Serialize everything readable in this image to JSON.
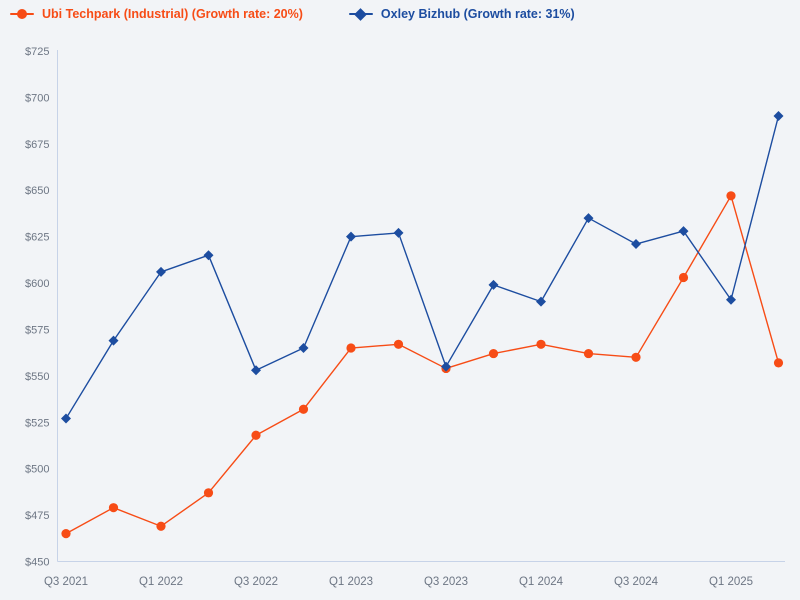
{
  "colors": {
    "background": "#f2f4f7",
    "axis": "#c7d3e8",
    "tick_label": "#6d7684",
    "series_orange": "#f74c16",
    "series_blue": "#1d4da0"
  },
  "legend": {
    "items": [
      {
        "label": "Ubi Techpark (Industrial) (Growth rate: 20%)",
        "color": "#f74c16",
        "marker": "circle"
      },
      {
        "label": "Oxley Bizhub (Growth rate: 31%)",
        "color": "#1d4da0",
        "marker": "diamond"
      }
    ]
  },
  "chart_data": {
    "type": "line",
    "title": "",
    "xlabel": "",
    "ylabel": "",
    "grid": false,
    "legend_position": "top-left",
    "currency_prefix": "$",
    "ylim": [
      450,
      725
    ],
    "y_tick_step": 25,
    "y_tick_labels": [
      "$450",
      "$475",
      "$500",
      "$525",
      "$550",
      "$575",
      "$600",
      "$625",
      "$650",
      "$675",
      "$700",
      "$725"
    ],
    "categories": [
      "Q3 2021",
      "Q4 2021",
      "Q1 2022",
      "Q2 2022",
      "Q3 2022",
      "Q4 2022",
      "Q1 2023",
      "Q2 2023",
      "Q3 2023",
      "Q4 2023",
      "Q1 2024",
      "Q2 2024",
      "Q3 2024",
      "Q4 2024",
      "Q1 2025",
      "Q2 2025"
    ],
    "x_tick_labels": [
      "Q3 2021",
      "Q1 2022",
      "Q3 2022",
      "Q1 2023",
      "Q3 2023",
      "Q1 2024",
      "Q3 2024",
      "Q1 2025"
    ],
    "x_tick_every": 2,
    "series": [
      {
        "name": "Ubi Techpark (Industrial)",
        "growth_rate": "20%",
        "color": "#f74c16",
        "marker": "circle",
        "values": [
          465,
          479,
          469,
          487,
          518,
          532,
          565,
          567,
          554,
          562,
          567,
          562,
          560,
          603,
          647,
          557
        ]
      },
      {
        "name": "Oxley Bizhub",
        "growth_rate": "31%",
        "color": "#1d4da0",
        "marker": "diamond",
        "values": [
          527,
          569,
          606,
          615,
          553,
          565,
          625,
          627,
          555,
          599,
          590,
          635,
          621,
          628,
          591,
          690
        ]
      }
    ]
  }
}
